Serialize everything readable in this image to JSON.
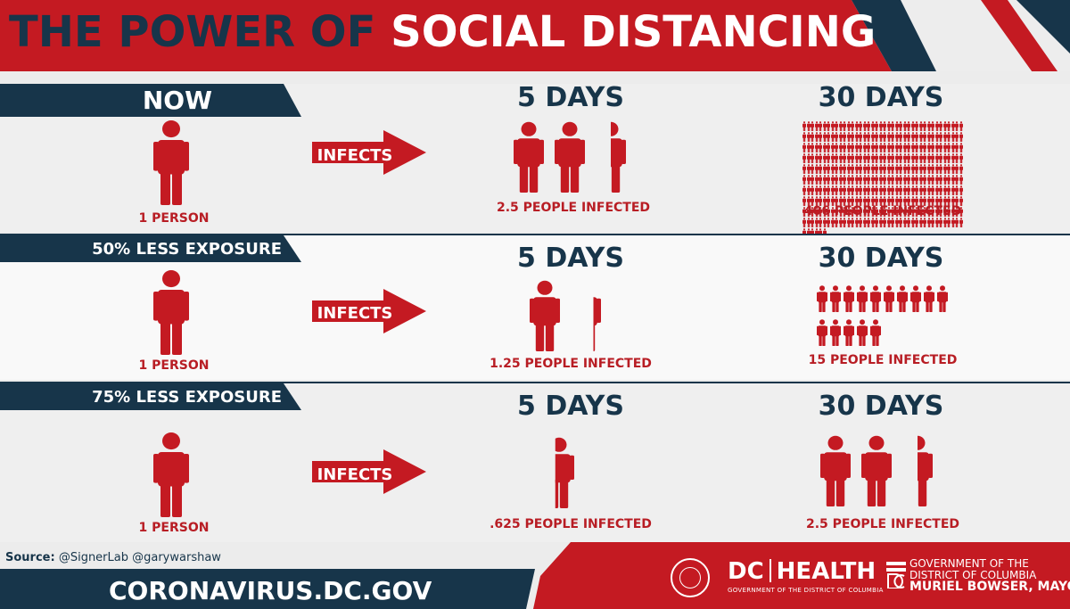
{
  "title": {
    "part1": "THE POWER OF",
    "part2": "SOCIAL DISTANCING"
  },
  "rows": [
    {
      "label": "NOW",
      "source_caption": "1 PERSON",
      "arrow_label": "INFECTS",
      "five_days": {
        "heading": "5 DAYS",
        "caption": "2.5 PEOPLE INFECTED",
        "value": 2.5
      },
      "thirty_days": {
        "heading": "30 DAYS",
        "caption": "406 PEOPLE INFECTED",
        "value": 406
      }
    },
    {
      "label": "50% LESS EXPOSURE",
      "source_caption": "1 PERSON",
      "arrow_label": "INFECTS",
      "five_days": {
        "heading": "5 DAYS",
        "caption": "1.25 PEOPLE INFECTED",
        "value": 1.25
      },
      "thirty_days": {
        "heading": "30 DAYS",
        "caption": "15 PEOPLE INFECTED",
        "value": 15
      }
    },
    {
      "label": "75% LESS EXPOSURE",
      "source_caption": "1 PERSON",
      "arrow_label": "INFECTS",
      "five_days": {
        "heading": "5 DAYS",
        "caption": ".625 PEOPLE INFECTED",
        "value": 0.625
      },
      "thirty_days": {
        "heading": "30 DAYS",
        "caption": "2.5 PEOPLE INFECTED",
        "value": 2.5
      }
    }
  ],
  "footer": {
    "source_label": "Source:",
    "source_text": "@SignerLab @garywarshaw",
    "url": "CORONAVIRUS.DC.GOV",
    "dc": "DC",
    "health": "HEALTH",
    "health_sub": "GOVERNMENT OF THE DISTRICT OF COLUMBIA",
    "gov_line1": "GOVERNMENT OF THE",
    "gov_line2": "DISTRICT OF COLUMBIA",
    "mayor": "MURIEL BOWSER, MAYOR"
  },
  "colors": {
    "red": "#c41a22",
    "navy": "#17354a",
    "caption_red": "#b81d24"
  },
  "icons": [
    "person-icon",
    "arrow-right-icon",
    "dc-seal-icon",
    "dc-flag-mark-icon"
  ]
}
